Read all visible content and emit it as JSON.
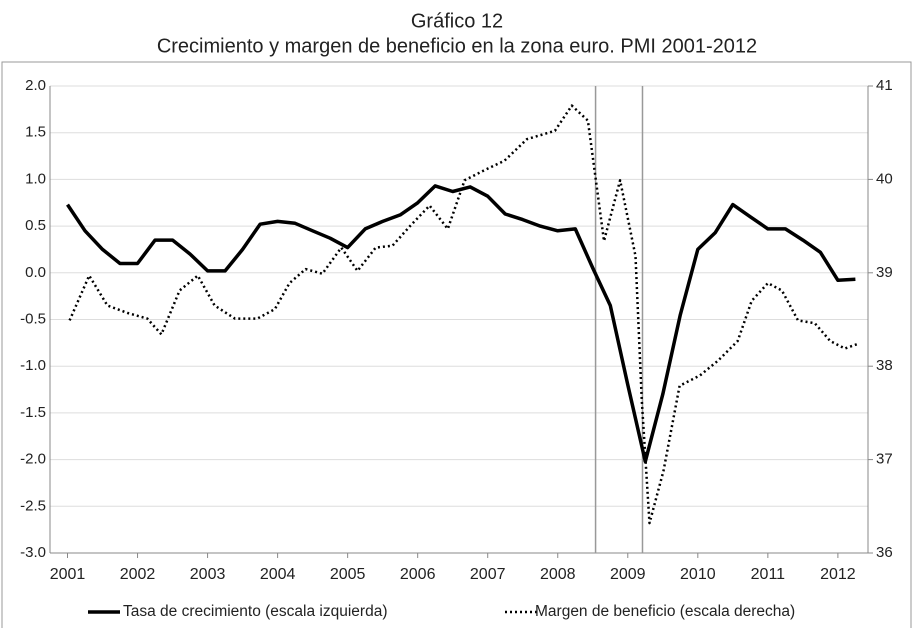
{
  "chart_data": {
    "type": "line",
    "title": "Gráfico 12",
    "subtitle": "Crecimiento y margen de beneficio en la zona euro. PMI 2001-2012",
    "xlim": [
      2000.75,
      2012.43
    ],
    "xticks": [
      2001,
      2002,
      2003,
      2004,
      2005,
      2006,
      2007,
      2008,
      2009,
      2010,
      2011,
      2012
    ],
    "ylim": [
      -3,
      2
    ],
    "yticks": [
      {
        "value": -3,
        "label": "-3.0"
      },
      -2.5,
      {
        "value": -2,
        "label": "-2.0"
      },
      -1.5,
      {
        "value": -1,
        "label": "-1.0"
      },
      -0.5,
      {
        "value": 0,
        "label": "0.0"
      },
      0.5,
      {
        "value": 1,
        "label": "1.0"
      },
      1.5,
      {
        "value": 2,
        "label": "2.0"
      }
    ],
    "y2lim": [
      36,
      41
    ],
    "y2ticks": [
      36,
      37,
      38,
      39,
      40,
      41
    ],
    "grid": true,
    "vlines": [
      2008.54,
      2009.21
    ],
    "legend": "bottom",
    "series": [
      {
        "name": "Tasa de crecimiento (escala izquierda)",
        "color": "#000000",
        "style": "solid",
        "x": [
          2001,
          2001.25,
          2001.5,
          2001.75,
          2002,
          2002.25,
          2002.5,
          2002.75,
          2003,
          2003.25,
          2003.5,
          2003.75,
          2004,
          2004.25,
          2004.5,
          2004.75,
          2005,
          2005.25,
          2005.5,
          2005.75,
          2006,
          2006.25,
          2006.5,
          2006.75,
          2007,
          2007.25,
          2007.5,
          2007.75,
          2008,
          2008.25,
          2008.5,
          2008.75,
          2009,
          2009.25,
          2009.5,
          2009.75,
          2010,
          2010.25,
          2010.5,
          2010.75,
          2011,
          2011.25,
          2011.5,
          2011.75,
          2012,
          2012.25
        ],
        "values": [
          0.73,
          0.45,
          0.25,
          0.1,
          0.1,
          0.35,
          0.35,
          0.2,
          0.02,
          0.02,
          0.25,
          0.52,
          0.55,
          0.53,
          0.45,
          0.37,
          0.27,
          0.47,
          0.55,
          0.62,
          0.75,
          0.93,
          0.87,
          0.92,
          0.82,
          0.63,
          0.57,
          0.5,
          0.45,
          0.47,
          0.05,
          -0.35,
          -1.2,
          -2.02,
          -1.3,
          -0.45,
          0.25,
          0.43,
          0.73,
          0.6,
          0.47,
          0.47,
          0.35,
          0.22,
          -0.08,
          -0.07
        ]
      },
      {
        "name": "Margen de beneficio (escala derecha)",
        "color": "#000000",
        "style": "dotted",
        "axis": "y2",
        "x": [
          2001.03,
          2001.31,
          2001.57,
          2001.86,
          2002.14,
          2002.34,
          2002.6,
          2002.86,
          2003.1,
          2003.39,
          2003.71,
          2003.96,
          2004.17,
          2004.4,
          2004.64,
          2004.91,
          2005.14,
          2005.4,
          2005.64,
          2005.89,
          2006.17,
          2006.43,
          2006.67,
          2006.93,
          2007.24,
          2007.56,
          2007.96,
          2008.2,
          2008.43,
          2008.66,
          2008.89,
          2009.11,
          2009.2,
          2009.31,
          2009.51,
          2009.74,
          2010.03,
          2010.29,
          2010.57,
          2010.77,
          2011.0,
          2011.2,
          2011.43,
          2011.67,
          2011.89,
          2012.1,
          2012.29
        ],
        "values": [
          38.49,
          38.97,
          38.65,
          38.57,
          38.51,
          38.34,
          38.81,
          38.97,
          38.65,
          38.51,
          38.51,
          38.61,
          38.89,
          39.04,
          38.99,
          39.27,
          39.02,
          39.27,
          39.29,
          39.5,
          39.72,
          39.47,
          39.99,
          40.09,
          40.2,
          40.43,
          40.52,
          40.79,
          40.63,
          39.34,
          39.99,
          39.18,
          37.63,
          36.32,
          36.88,
          37.79,
          37.9,
          38.06,
          38.27,
          38.7,
          38.89,
          38.81,
          38.49,
          38.46,
          38.27,
          38.19,
          38.24
        ]
      }
    ]
  }
}
